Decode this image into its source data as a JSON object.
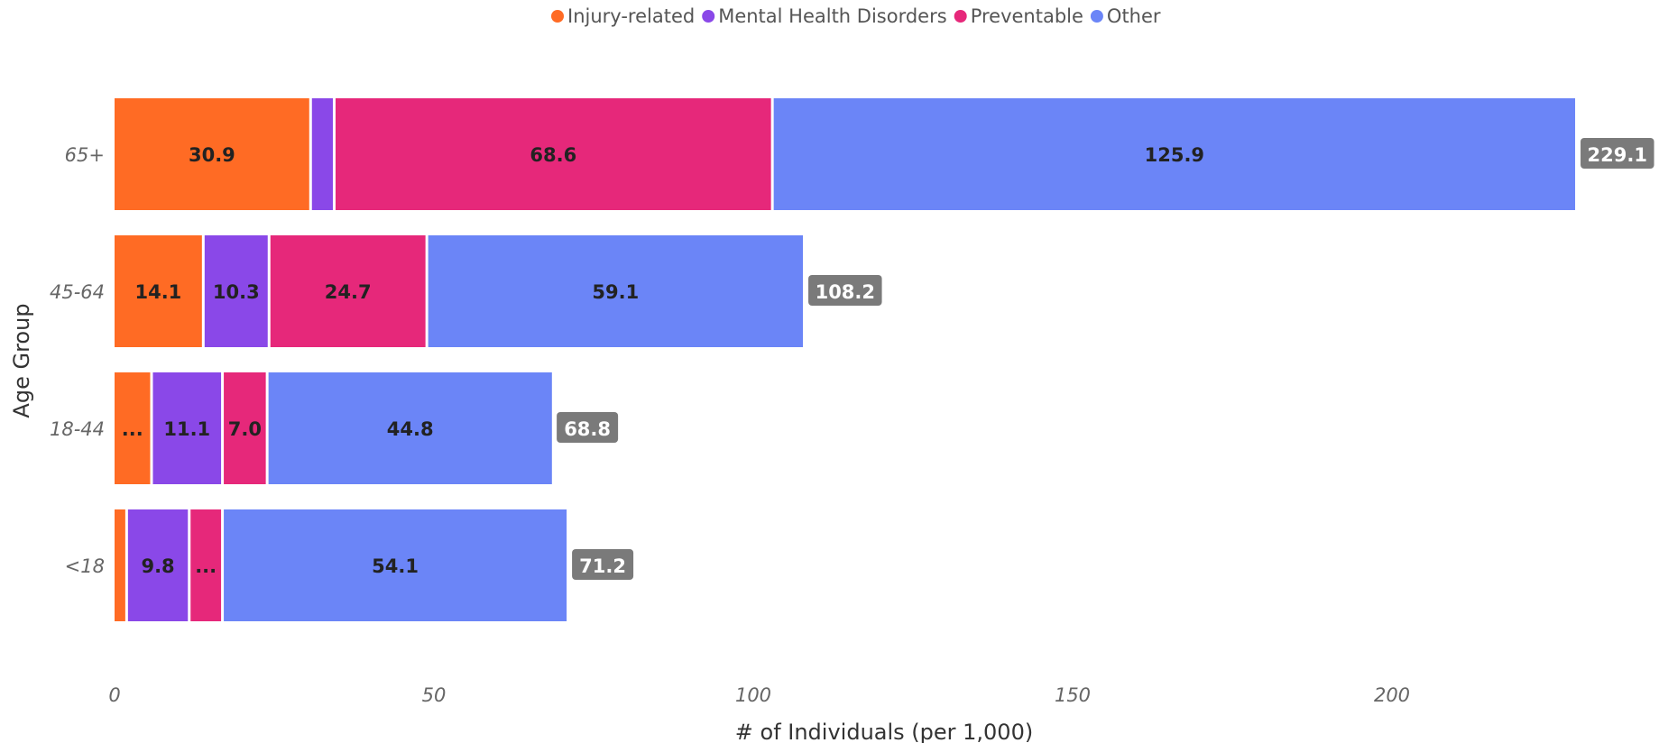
{
  "chart_data": {
    "type": "bar",
    "orientation": "horizontal",
    "stacked": true,
    "title": "",
    "xlabel": "# of Individuals (per 1,000)",
    "ylabel": "Age Group",
    "xlim": [
      0,
      229.1
    ],
    "xticks": [
      0,
      50,
      100,
      150,
      200
    ],
    "xtick_labels": [
      "0",
      "50",
      "100",
      "150",
      "200"
    ],
    "categories": [
      "65+",
      "45-64",
      "18-44",
      "<18"
    ],
    "legend_position": "top-center",
    "grid": false,
    "series": [
      {
        "name": "Injury-related",
        "color": "#FF6B24",
        "values": [
          30.9,
          14.1,
          6.0,
          2.1
        ],
        "labels": [
          "30.9",
          "14.1",
          "...",
          ""
        ]
      },
      {
        "name": "Mental Health Disorders",
        "color": "#8A48E8",
        "values": [
          3.7,
          10.3,
          11.1,
          9.8
        ],
        "labels": [
          "",
          "10.3",
          "11.1",
          "9.8"
        ]
      },
      {
        "name": "Preventable",
        "color": "#E6287A",
        "values": [
          68.6,
          24.7,
          7.0,
          5.2
        ],
        "labels": [
          "68.6",
          "24.7",
          "7.0",
          "..."
        ]
      },
      {
        "name": "Other",
        "color": "#6B85F7",
        "values": [
          125.9,
          59.1,
          44.8,
          54.1
        ],
        "labels": [
          "125.9",
          "59.1",
          "44.8",
          "54.1"
        ]
      }
    ],
    "totals": [
      "229.1",
      "108.2",
      "68.8",
      "71.2"
    ],
    "total_values": [
      229.1,
      108.2,
      68.8,
      71.2
    ],
    "total_badge_color": "#7a7a7a"
  }
}
